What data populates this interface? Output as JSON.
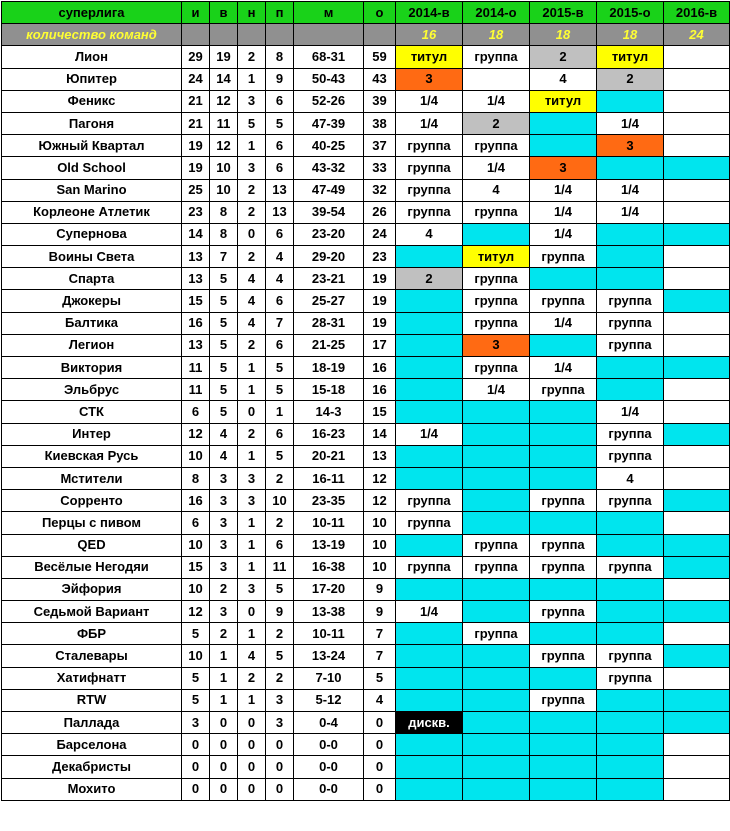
{
  "table": {
    "header": [
      "суперлига",
      "и",
      "в",
      "н",
      "п",
      "м",
      "о",
      "2014-в",
      "2014-о",
      "2015-в",
      "2015-о",
      "2016-в"
    ],
    "count_row": {
      "label": "количество команд",
      "values": [
        16,
        18,
        18,
        18,
        24
      ]
    },
    "rows": [
      {
        "team": "Лион",
        "stats": [
          29,
          19,
          2,
          8,
          "68-31",
          59
        ],
        "seasons": [
          {
            "text": "титул",
            "bg": "#ffff00"
          },
          {
            "text": "группа",
            "bg": "#ffffff"
          },
          {
            "text": "2",
            "bg": "#c0c0c0"
          },
          {
            "text": "титул",
            "bg": "#ffff00"
          },
          {
            "bg": "#ffffff"
          }
        ]
      },
      {
        "team": "Юпитер",
        "stats": [
          24,
          14,
          1,
          9,
          "50-43",
          43
        ],
        "seasons": [
          {
            "text": "3",
            "bg": "#ff6a13"
          },
          {
            "bg": "#ffffff"
          },
          {
            "text": "4",
            "bg": "#ffffff"
          },
          {
            "text": "2",
            "bg": "#c0c0c0"
          },
          {
            "bg": "#ffffff"
          }
        ]
      },
      {
        "team": "Феникс",
        "stats": [
          21,
          12,
          3,
          6,
          "52-26",
          39
        ],
        "seasons": [
          {
            "text": "1/4",
            "bg": "#ffffff"
          },
          {
            "text": "1/4",
            "bg": "#ffffff"
          },
          {
            "text": "титул",
            "bg": "#ffff00"
          },
          {
            "bg": "#00e5ee"
          },
          {
            "bg": "#ffffff"
          }
        ]
      },
      {
        "team": "Пагоня",
        "stats": [
          21,
          11,
          5,
          5,
          "47-39",
          38
        ],
        "seasons": [
          {
            "text": "1/4",
            "bg": "#ffffff"
          },
          {
            "text": "2",
            "bg": "#c0c0c0"
          },
          {
            "bg": "#00e5ee"
          },
          {
            "text": "1/4",
            "bg": "#ffffff"
          },
          {
            "bg": "#ffffff"
          }
        ]
      },
      {
        "team": "Южный Квартал",
        "stats": [
          19,
          12,
          1,
          6,
          "40-25",
          37
        ],
        "seasons": [
          {
            "text": "группа",
            "bg": "#ffffff"
          },
          {
            "text": "группа",
            "bg": "#ffffff"
          },
          {
            "bg": "#00e5ee"
          },
          {
            "text": "3",
            "bg": "#ff6a13"
          },
          {
            "bg": "#ffffff"
          }
        ]
      },
      {
        "team": "Old School",
        "stats": [
          19,
          10,
          3,
          6,
          "43-32",
          33
        ],
        "seasons": [
          {
            "text": "группа",
            "bg": "#ffffff"
          },
          {
            "text": "1/4",
            "bg": "#ffffff"
          },
          {
            "text": "3",
            "bg": "#ff6a13"
          },
          {
            "bg": "#00e5ee"
          },
          {
            "bg": "#00e5ee"
          }
        ]
      },
      {
        "team": "San Marino",
        "stats": [
          25,
          10,
          2,
          13,
          "47-49",
          32
        ],
        "seasons": [
          {
            "text": "группа",
            "bg": "#ffffff"
          },
          {
            "text": "4",
            "bg": "#ffffff"
          },
          {
            "text": "1/4",
            "bg": "#ffffff"
          },
          {
            "text": "1/4",
            "bg": "#ffffff"
          },
          {
            "bg": "#ffffff"
          }
        ]
      },
      {
        "team": "Корлеоне Атлетик",
        "stats": [
          23,
          8,
          2,
          13,
          "39-54",
          26
        ],
        "seasons": [
          {
            "text": "группа",
            "bg": "#ffffff"
          },
          {
            "text": "группа",
            "bg": "#ffffff"
          },
          {
            "text": "1/4",
            "bg": "#ffffff"
          },
          {
            "text": "1/4",
            "bg": "#ffffff"
          },
          {
            "bg": "#ffffff"
          }
        ]
      },
      {
        "team": "Супернова",
        "stats": [
          14,
          8,
          0,
          6,
          "23-20",
          24
        ],
        "seasons": [
          {
            "text": "4",
            "bg": "#ffffff"
          },
          {
            "bg": "#00e5ee"
          },
          {
            "text": "1/4",
            "bg": "#ffffff"
          },
          {
            "bg": "#00e5ee"
          },
          {
            "bg": "#00e5ee"
          }
        ]
      },
      {
        "team": "Воины Света",
        "stats": [
          13,
          7,
          2,
          4,
          "29-20",
          23
        ],
        "seasons": [
          {
            "bg": "#00e5ee"
          },
          {
            "text": "титул",
            "bg": "#ffff00"
          },
          {
            "text": "группа",
            "bg": "#ffffff"
          },
          {
            "bg": "#00e5ee"
          },
          {
            "bg": "#ffffff"
          }
        ]
      },
      {
        "team": "Спарта",
        "stats": [
          13,
          5,
          4,
          4,
          "23-21",
          19
        ],
        "seasons": [
          {
            "text": "2",
            "bg": "#c0c0c0"
          },
          {
            "text": "группа",
            "bg": "#ffffff"
          },
          {
            "bg": "#00e5ee"
          },
          {
            "bg": "#00e5ee"
          },
          {
            "bg": "#ffffff"
          }
        ]
      },
      {
        "team": "Джокеры",
        "stats": [
          15,
          5,
          4,
          6,
          "25-27",
          19
        ],
        "seasons": [
          {
            "bg": "#00e5ee"
          },
          {
            "text": "группа",
            "bg": "#ffffff"
          },
          {
            "text": "группа",
            "bg": "#ffffff"
          },
          {
            "text": "группа",
            "bg": "#ffffff"
          },
          {
            "bg": "#00e5ee"
          }
        ]
      },
      {
        "team": "Балтика",
        "stats": [
          16,
          5,
          4,
          7,
          "28-31",
          19
        ],
        "seasons": [
          {
            "bg": "#00e5ee"
          },
          {
            "text": "группа",
            "bg": "#ffffff"
          },
          {
            "text": "1/4",
            "bg": "#ffffff"
          },
          {
            "text": "группа",
            "bg": "#ffffff"
          },
          {
            "bg": "#ffffff"
          }
        ]
      },
      {
        "team": "Легион",
        "stats": [
          13,
          5,
          2,
          6,
          "21-25",
          17
        ],
        "seasons": [
          {
            "bg": "#00e5ee"
          },
          {
            "text": "3",
            "bg": "#ff6a13"
          },
          {
            "bg": "#00e5ee"
          },
          {
            "text": "группа",
            "bg": "#ffffff"
          },
          {
            "bg": "#ffffff"
          }
        ]
      },
      {
        "team": "Виктория",
        "stats": [
          11,
          5,
          1,
          5,
          "18-19",
          16
        ],
        "seasons": [
          {
            "bg": "#00e5ee"
          },
          {
            "text": "группа",
            "bg": "#ffffff"
          },
          {
            "text": "1/4",
            "bg": "#ffffff"
          },
          {
            "bg": "#00e5ee"
          },
          {
            "bg": "#00e5ee"
          }
        ]
      },
      {
        "team": "Эльбрус",
        "stats": [
          11,
          5,
          1,
          5,
          "15-18",
          16
        ],
        "seasons": [
          {
            "bg": "#00e5ee"
          },
          {
            "text": "1/4",
            "bg": "#ffffff"
          },
          {
            "text": "группа",
            "bg": "#ffffff"
          },
          {
            "bg": "#00e5ee"
          },
          {
            "bg": "#ffffff"
          }
        ]
      },
      {
        "team": "СТК",
        "stats": [
          6,
          5,
          0,
          1,
          "14-3",
          15
        ],
        "seasons": [
          {
            "bg": "#00e5ee"
          },
          {
            "bg": "#00e5ee"
          },
          {
            "bg": "#00e5ee"
          },
          {
            "text": "1/4",
            "bg": "#ffffff"
          },
          {
            "bg": "#ffffff"
          }
        ]
      },
      {
        "team": "Интер",
        "stats": [
          12,
          4,
          2,
          6,
          "16-23",
          14
        ],
        "seasons": [
          {
            "text": "1/4",
            "bg": "#ffffff"
          },
          {
            "bg": "#00e5ee"
          },
          {
            "bg": "#00e5ee"
          },
          {
            "text": "группа",
            "bg": "#ffffff"
          },
          {
            "bg": "#00e5ee"
          }
        ]
      },
      {
        "team": "Киевская Русь",
        "stats": [
          10,
          4,
          1,
          5,
          "20-21",
          13
        ],
        "seasons": [
          {
            "bg": "#00e5ee"
          },
          {
            "bg": "#00e5ee"
          },
          {
            "bg": "#00e5ee"
          },
          {
            "text": "группа",
            "bg": "#ffffff"
          },
          {
            "bg": "#ffffff"
          }
        ]
      },
      {
        "team": "Мстители",
        "stats": [
          8,
          3,
          3,
          2,
          "16-11",
          12
        ],
        "seasons": [
          {
            "bg": "#00e5ee"
          },
          {
            "bg": "#00e5ee"
          },
          {
            "bg": "#00e5ee"
          },
          {
            "text": "4",
            "bg": "#ffffff"
          },
          {
            "bg": "#ffffff"
          }
        ]
      },
      {
        "team": "Сорренто",
        "stats": [
          16,
          3,
          3,
          10,
          "23-35",
          12
        ],
        "seasons": [
          {
            "text": "группа",
            "bg": "#ffffff"
          },
          {
            "bg": "#00e5ee"
          },
          {
            "text": "группа",
            "bg": "#ffffff"
          },
          {
            "text": "группа",
            "bg": "#ffffff"
          },
          {
            "bg": "#00e5ee"
          }
        ]
      },
      {
        "team": "Перцы с пивом",
        "stats": [
          6,
          3,
          1,
          2,
          "10-11",
          10
        ],
        "seasons": [
          {
            "text": "группа",
            "bg": "#ffffff"
          },
          {
            "bg": "#00e5ee"
          },
          {
            "bg": "#00e5ee"
          },
          {
            "bg": "#00e5ee"
          },
          {
            "bg": "#ffffff"
          }
        ]
      },
      {
        "team": "QED",
        "stats": [
          10,
          3,
          1,
          6,
          "13-19",
          10
        ],
        "seasons": [
          {
            "bg": "#00e5ee"
          },
          {
            "text": "группа",
            "bg": "#ffffff"
          },
          {
            "text": "группа",
            "bg": "#ffffff"
          },
          {
            "bg": "#00e5ee"
          },
          {
            "bg": "#00e5ee"
          }
        ]
      },
      {
        "team": "Весёлые Негодяи",
        "stats": [
          15,
          3,
          1,
          11,
          "16-38",
          10
        ],
        "seasons": [
          {
            "text": "группа",
            "bg": "#ffffff"
          },
          {
            "text": "группа",
            "bg": "#ffffff"
          },
          {
            "text": "группа",
            "bg": "#ffffff"
          },
          {
            "text": "группа",
            "bg": "#ffffff"
          },
          {
            "bg": "#00e5ee"
          }
        ]
      },
      {
        "team": "Эйфория",
        "stats": [
          10,
          2,
          3,
          5,
          "17-20",
          9
        ],
        "seasons": [
          {
            "bg": "#00e5ee"
          },
          {
            "bg": "#00e5ee"
          },
          {
            "bg": "#00e5ee"
          },
          {
            "bg": "#00e5ee"
          },
          {
            "bg": "#ffffff"
          }
        ]
      },
      {
        "team": "Седьмой Вариант",
        "stats": [
          12,
          3,
          0,
          9,
          "13-38",
          9
        ],
        "seasons": [
          {
            "text": "1/4",
            "bg": "#ffffff"
          },
          {
            "bg": "#00e5ee"
          },
          {
            "text": "группа",
            "bg": "#ffffff"
          },
          {
            "bg": "#00e5ee"
          },
          {
            "bg": "#00e5ee"
          }
        ]
      },
      {
        "team": "ФБР",
        "stats": [
          5,
          2,
          1,
          2,
          "10-11",
          7
        ],
        "seasons": [
          {
            "bg": "#00e5ee"
          },
          {
            "text": "группа",
            "bg": "#ffffff"
          },
          {
            "bg": "#00e5ee"
          },
          {
            "bg": "#00e5ee"
          },
          {
            "bg": "#ffffff"
          }
        ]
      },
      {
        "team": "Сталевары",
        "stats": [
          10,
          1,
          4,
          5,
          "13-24",
          7
        ],
        "seasons": [
          {
            "bg": "#00e5ee"
          },
          {
            "bg": "#00e5ee"
          },
          {
            "text": "группа",
            "bg": "#ffffff"
          },
          {
            "text": "группа",
            "bg": "#ffffff"
          },
          {
            "bg": "#00e5ee"
          }
        ]
      },
      {
        "team": "Хатифнатт",
        "stats": [
          5,
          1,
          2,
          2,
          "7-10",
          5
        ],
        "seasons": [
          {
            "bg": "#00e5ee"
          },
          {
            "bg": "#00e5ee"
          },
          {
            "bg": "#00e5ee"
          },
          {
            "text": "группа",
            "bg": "#ffffff"
          },
          {
            "bg": "#ffffff"
          }
        ]
      },
      {
        "team": "RTW",
        "stats": [
          5,
          1,
          1,
          3,
          "5-12",
          4
        ],
        "seasons": [
          {
            "bg": "#00e5ee"
          },
          {
            "bg": "#00e5ee"
          },
          {
            "text": "группа",
            "bg": "#ffffff"
          },
          {
            "bg": "#00e5ee"
          },
          {
            "bg": "#00e5ee"
          }
        ]
      },
      {
        "team": "Паллада",
        "stats": [
          3,
          0,
          0,
          3,
          "0-4",
          0
        ],
        "seasons": [
          {
            "text": "дискв.",
            "bg": "#000000"
          },
          {
            "bg": "#00e5ee"
          },
          {
            "bg": "#00e5ee"
          },
          {
            "bg": "#00e5ee"
          },
          {
            "bg": "#00e5ee"
          }
        ]
      },
      {
        "team": "Барселона",
        "stats": [
          0,
          0,
          0,
          0,
          "0-0",
          0
        ],
        "seasons": [
          {
            "bg": "#00e5ee"
          },
          {
            "bg": "#00e5ee"
          },
          {
            "bg": "#00e5ee"
          },
          {
            "bg": "#00e5ee"
          },
          {
            "bg": "#ffffff"
          }
        ]
      },
      {
        "team": "Декабристы",
        "stats": [
          0,
          0,
          0,
          0,
          "0-0",
          0
        ],
        "seasons": [
          {
            "bg": "#00e5ee"
          },
          {
            "bg": "#00e5ee"
          },
          {
            "bg": "#00e5ee"
          },
          {
            "bg": "#00e5ee"
          },
          {
            "bg": "#ffffff"
          }
        ]
      },
      {
        "team": "Мохито",
        "stats": [
          0,
          0,
          0,
          0,
          "0-0",
          0
        ],
        "seasons": [
          {
            "bg": "#00e5ee"
          },
          {
            "bg": "#00e5ee"
          },
          {
            "bg": "#00e5ee"
          },
          {
            "bg": "#00e5ee"
          },
          {
            "bg": "#ffffff"
          }
        ]
      }
    ]
  }
}
